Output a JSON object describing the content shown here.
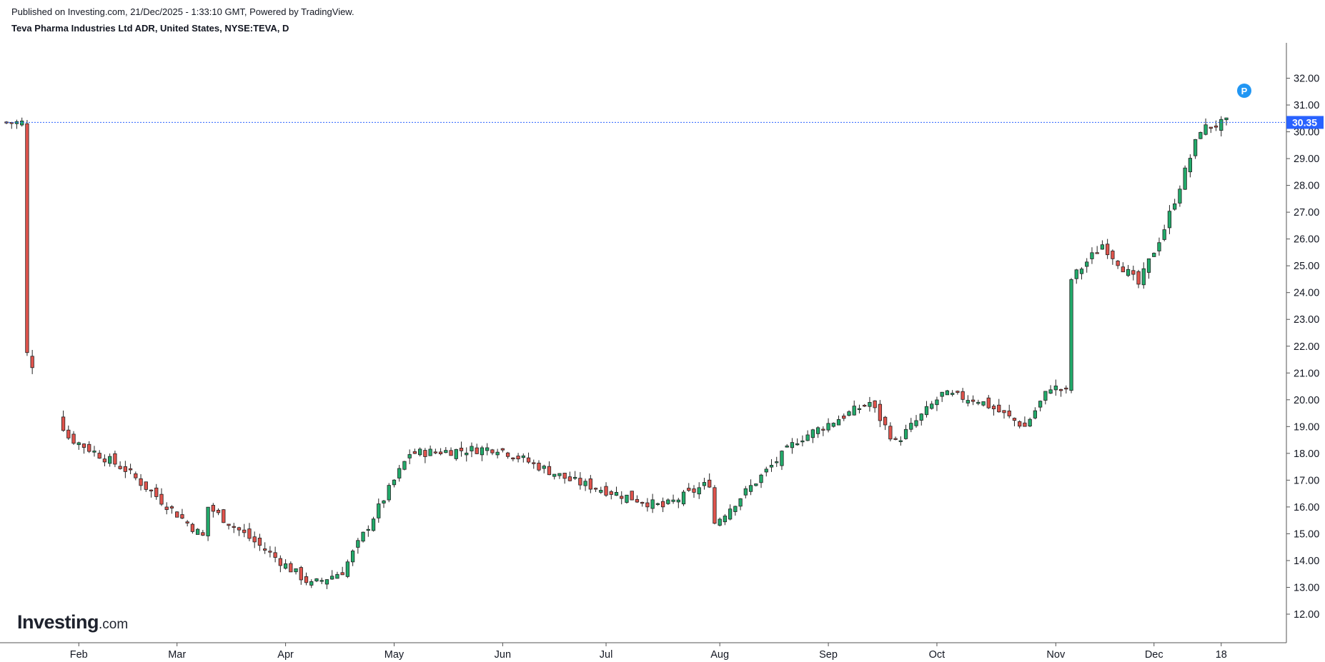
{
  "header": {
    "published": "Published on Investing.com, 21/Dec/2025 - 1:33:10 GMT, Powered by TradingView.",
    "symbol": "Teva Pharma Industries Ltd ADR, United States, NYSE:TEVA, D"
  },
  "logo": {
    "main": "Investing",
    "suffix": ".com"
  },
  "marker": {
    "label": "P",
    "color": "#2196f3"
  },
  "colors": {
    "up": "#22ab6b",
    "down": "#e0534c",
    "wick": "#222222",
    "axis": "#555555",
    "last_price_bg": "#2962ff",
    "last_price_line": "#2962ff"
  },
  "chart_data": {
    "type": "candlestick",
    "ylim": [
      11.6,
      32.6
    ],
    "y_ticks": [
      "12.00",
      "13.00",
      "14.00",
      "15.00",
      "16.00",
      "17.00",
      "18.00",
      "19.00",
      "20.00",
      "21.00",
      "22.00",
      "23.00",
      "24.00",
      "25.00",
      "26.00",
      "27.00",
      "28.00",
      "29.00",
      "30.00",
      "31.00",
      "32.00"
    ],
    "x_ticks": [
      {
        "label": "Feb",
        "date": "2025-02-03"
      },
      {
        "label": "Mar",
        "date": "2025-03-03"
      },
      {
        "label": "Apr",
        "date": "2025-04-01"
      },
      {
        "label": "May",
        "date": "2025-05-01"
      },
      {
        "label": "Jun",
        "date": "2025-06-02"
      },
      {
        "label": "Jul",
        "date": "2025-07-01"
      },
      {
        "label": "Aug",
        "date": "2025-08-01"
      },
      {
        "label": "Sep",
        "date": "2025-09-02"
      },
      {
        "label": "Oct",
        "date": "2025-10-01"
      },
      {
        "label": "Nov",
        "date": "2025-11-03"
      },
      {
        "label": "Dec",
        "date": "2025-12-01"
      },
      {
        "label": "18",
        "date": "2025-12-18"
      }
    ],
    "last_price": "30.35",
    "last_price_value": 30.35,
    "key_closes": [
      {
        "date": "2025-01-17",
        "close": 21.7
      },
      {
        "date": "2025-01-30",
        "close": 18.6
      },
      {
        "date": "2025-02-14",
        "close": 17.4
      },
      {
        "date": "2025-03-10",
        "close": 14.9
      },
      {
        "date": "2025-03-11",
        "close": 16.0
      },
      {
        "date": "2025-04-08",
        "close": 13.1
      },
      {
        "date": "2025-04-16",
        "close": 13.6
      },
      {
        "date": "2025-05-06",
        "close": 18.0
      },
      {
        "date": "2025-05-30",
        "close": 18.2
      },
      {
        "date": "2025-06-20",
        "close": 17.0
      },
      {
        "date": "2025-07-17",
        "close": 16.0
      },
      {
        "date": "2025-07-30",
        "close": 16.9
      },
      {
        "date": "2025-07-31",
        "close": 15.4
      },
      {
        "date": "2025-08-22",
        "close": 18.5
      },
      {
        "date": "2025-09-12",
        "close": 19.9
      },
      {
        "date": "2025-09-19",
        "close": 18.4
      },
      {
        "date": "2025-10-02",
        "close": 20.2
      },
      {
        "date": "2025-10-13",
        "close": 20.0
      },
      {
        "date": "2025-10-24",
        "close": 19.0
      },
      {
        "date": "2025-10-31",
        "close": 20.5
      },
      {
        "date": "2025-11-05",
        "close": 20.3
      },
      {
        "date": "2025-11-06",
        "close": 24.5
      },
      {
        "date": "2025-11-14",
        "close": 25.8
      },
      {
        "date": "2025-11-25",
        "close": 24.3
      },
      {
        "date": "2025-12-03",
        "close": 26.4
      },
      {
        "date": "2025-12-12",
        "close": 30.1
      },
      {
        "date": "2025-12-19",
        "close": 30.35
      }
    ],
    "gap_ranges": [
      {
        "from": "2025-01-22",
        "to": "2025-01-28"
      },
      {
        "from": "2025-11-06",
        "to": "2025-11-06"
      }
    ]
  }
}
